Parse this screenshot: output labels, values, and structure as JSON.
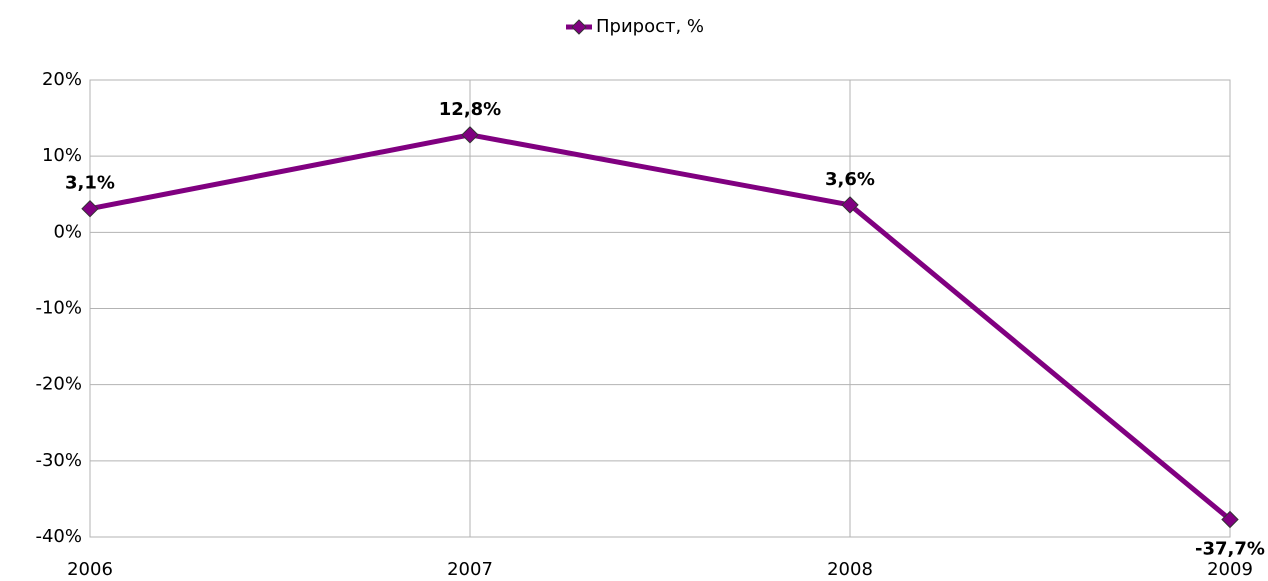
{
  "chart_data": {
    "type": "line",
    "legend": "top",
    "x": [
      2006,
      2007,
      2008,
      2009
    ],
    "xlim": [
      2006,
      2009
    ],
    "xticks": [
      2006,
      2007,
      2008,
      2009
    ],
    "series": [
      {
        "name": "Прирост, %",
        "color": "#800080",
        "values": [
          3.1,
          12.8,
          3.6,
          -37.7
        ],
        "value_labels": [
          "3,1%",
          "12,8%",
          "3,6%",
          "-37,7%"
        ]
      }
    ],
    "ylim": [
      -40,
      20
    ],
    "yticks": [
      {
        "value": -40,
        "label": "-40%"
      },
      {
        "value": -30,
        "label": "-30%"
      },
      {
        "value": -20,
        "label": "-20%"
      },
      {
        "value": -10,
        "label": "-10%"
      },
      {
        "value": 0,
        "label": "0%"
      },
      {
        "value": 10,
        "label": "10%"
      },
      {
        "value": 20,
        "label": "20%"
      }
    ],
    "grid": true
  }
}
